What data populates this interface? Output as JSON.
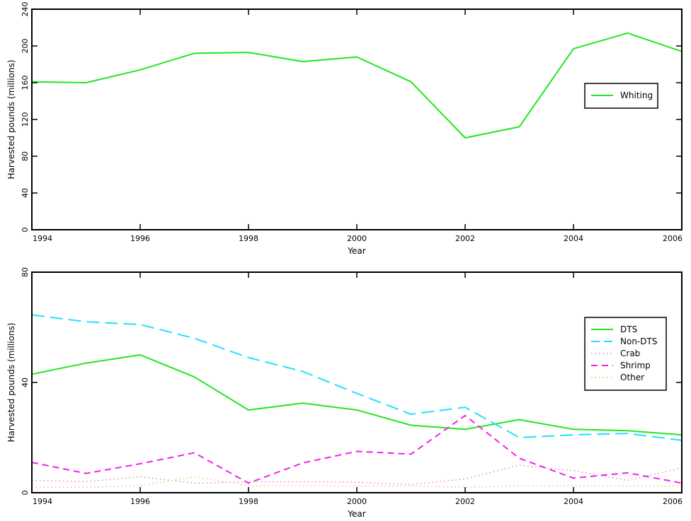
{
  "chart_data": [
    {
      "type": "line",
      "xlabel": "Year",
      "ylabel": "Harvested pounds (millions)",
      "xlim": [
        1994,
        2006
      ],
      "ylim": [
        0,
        240
      ],
      "xticks": [
        1994,
        1996,
        1998,
        2000,
        2002,
        2004,
        2006
      ],
      "yticks": [
        0,
        40,
        80,
        120,
        160,
        200,
        240
      ],
      "legend_position": "right",
      "x": [
        1994,
        1995,
        1996,
        1997,
        1998,
        1999,
        2000,
        2001,
        2002,
        2003,
        2004,
        2005,
        2006
      ],
      "series": [
        {
          "name": "Whiting",
          "color": "#22e622",
          "style": "solid",
          "values": [
            161,
            160,
            174,
            192,
            193,
            183,
            188,
            161,
            100,
            112,
            197,
            214,
            194
          ]
        }
      ]
    },
    {
      "type": "line",
      "xlabel": "Year",
      "ylabel": "Harvested pounds (millions)",
      "xlim": [
        1994,
        2006
      ],
      "ylim": [
        0,
        80
      ],
      "xticks": [
        1994,
        1996,
        1998,
        2000,
        2002,
        2004,
        2006
      ],
      "yticks": [
        0,
        40,
        80
      ],
      "legend_position": "right",
      "x": [
        1994,
        1995,
        1996,
        1997,
        1998,
        1999,
        2000,
        2001,
        2002,
        2003,
        2004,
        2005,
        2006
      ],
      "series": [
        {
          "name": "DTS",
          "color": "#22e622",
          "style": "solid",
          "values": [
            43,
            47,
            50,
            42,
            30,
            32.5,
            30,
            24.5,
            23,
            26.5,
            23,
            22.5,
            21
          ]
        },
        {
          "name": "Non-DTS",
          "color": "#22e0ff",
          "style": "longdash",
          "values": [
            64.5,
            62,
            61,
            56,
            49,
            44,
            36,
            28.5,
            31,
            20,
            21,
            21.5,
            19
          ]
        },
        {
          "name": "Crab",
          "color": "#e080b0",
          "style": "dotted",
          "values": [
            4.5,
            4,
            5.8,
            3.5,
            4,
            4,
            3.8,
            3,
            5,
            10,
            8,
            4.5,
            9
          ]
        },
        {
          "name": "Shrimp",
          "color": "#ee22ee",
          "style": "dashed",
          "values": [
            11,
            7,
            10.5,
            14.5,
            3.5,
            10.8,
            15,
            14,
            28,
            12.5,
            5.3,
            7.2,
            3.5
          ]
        },
        {
          "name": "Other",
          "color": "#f0c060",
          "style": "dotted",
          "values": [
            2,
            2,
            2.5,
            5.8,
            2.5,
            2.5,
            2.5,
            2.5,
            2,
            2.5,
            2.5,
            2.5,
            2.5
          ]
        }
      ]
    }
  ]
}
